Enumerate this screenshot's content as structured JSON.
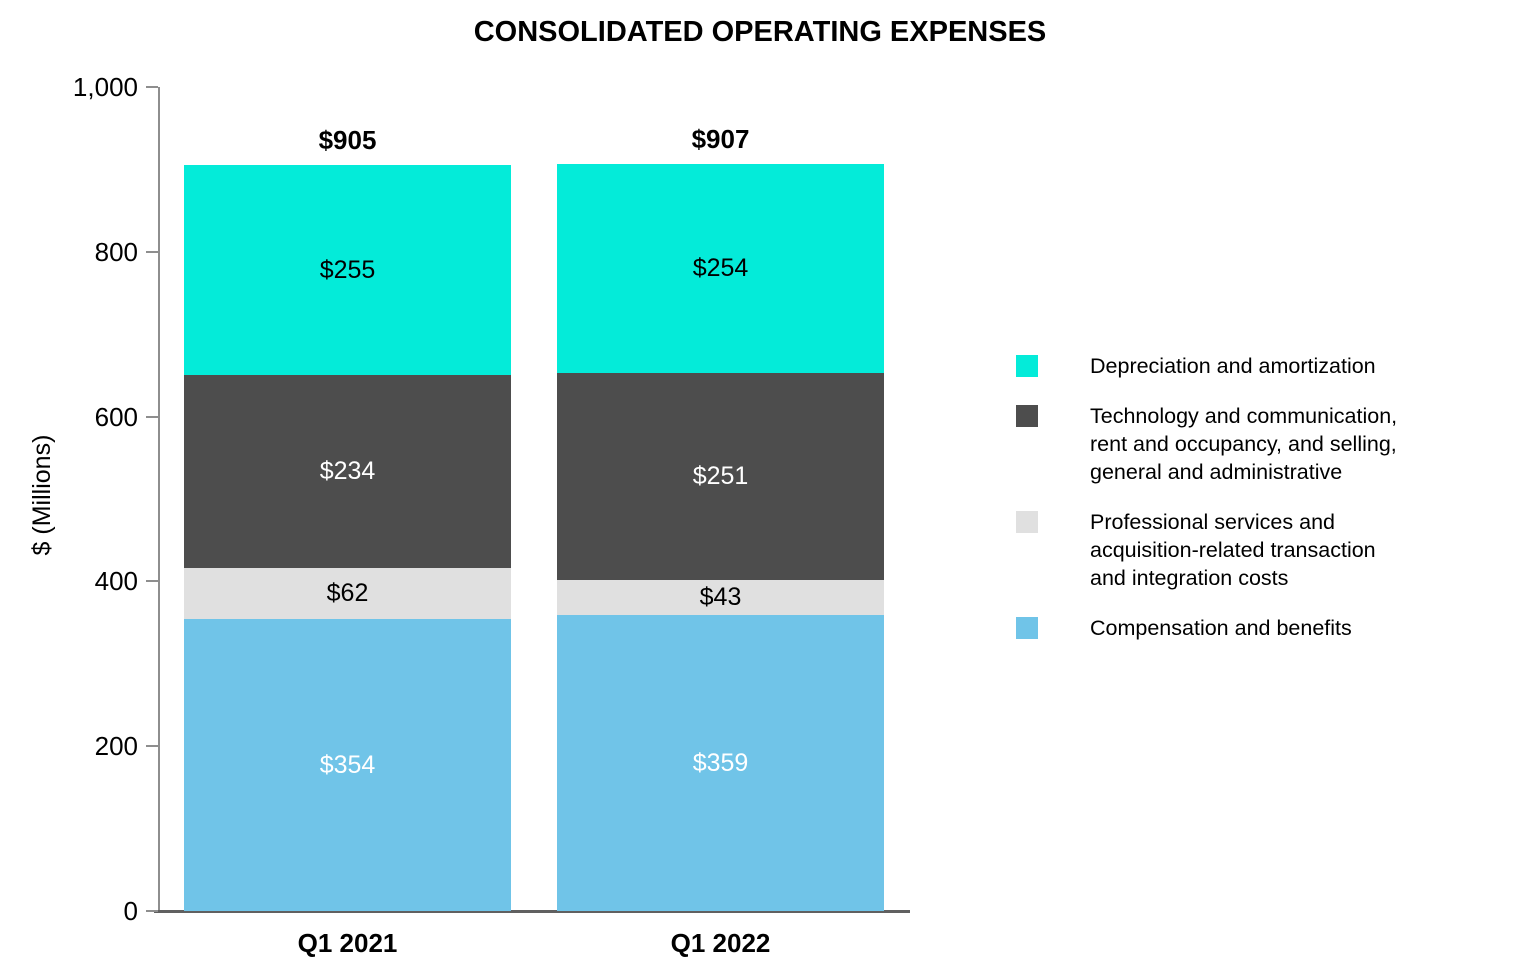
{
  "chart_data": {
    "type": "bar",
    "stacked": true,
    "title": "CONSOLIDATED OPERATING EXPENSES",
    "ylabel": "$ (Millions)",
    "ylim": [
      0,
      1000
    ],
    "grid": false,
    "legend_position": "right",
    "value_prefix": "$",
    "yticks": [
      {
        "value": 0,
        "label": "0"
      },
      {
        "value": 200,
        "label": "200"
      },
      {
        "value": 400,
        "label": "400"
      },
      {
        "value": 600,
        "label": "600"
      },
      {
        "value": 800,
        "label": "800"
      },
      {
        "value": 1000,
        "label": "1,000"
      }
    ],
    "categories": [
      "Q1 2021",
      "Q1 2022"
    ],
    "series": [
      {
        "name": "Compensation and benefits",
        "values": [
          354,
          359
        ],
        "color": "#70C4E8",
        "label_color": "#FFFFFF"
      },
      {
        "name": "Professional services and acquisition-related transaction and integration costs",
        "values": [
          62,
          43
        ],
        "color": "#E0E0E0",
        "label_color": "#000000"
      },
      {
        "name": "Technology and communication, rent and occupancy, and selling, general and administrative",
        "values": [
          234,
          251
        ],
        "color": "#4D4D4D",
        "label_color": "#FFFFFF"
      },
      {
        "name": "Depreciation and amortization",
        "values": [
          255,
          254
        ],
        "color": "#04EBD9",
        "label_color": "#000000"
      }
    ],
    "totals": [
      905,
      907
    ],
    "legend": [
      {
        "color": "#04EBD9",
        "label": "Depreciation and amortization"
      },
      {
        "color": "#4D4D4D",
        "label": "Technology and communication,\nrent and occupancy, and selling,\ngeneral and administrative"
      },
      {
        "color": "#E0E0E0",
        "label": "Professional services and\nacquisition-related transaction\nand integration costs"
      },
      {
        "color": "#70C4E8",
        "label": "Compensation and benefits"
      }
    ],
    "axis_color": "#8E8E8E",
    "x_axis_line_color": "#606060"
  }
}
